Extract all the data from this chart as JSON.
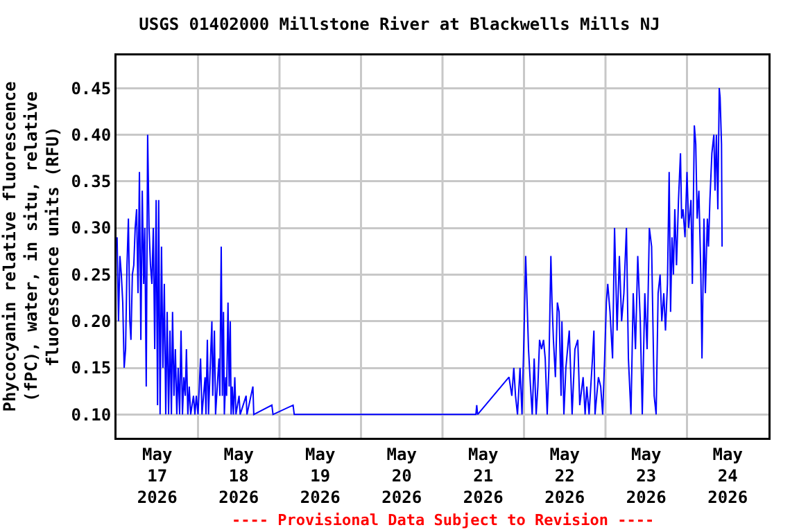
{
  "chart_data": {
    "type": "line",
    "title": "USGS 01402000 Millstone River at Blackwells Mills NJ",
    "ylabel": "Phycocyanin relative fluorescence\n(fPC), water, in situ, relative\nfluorescence units (RFU)",
    "annotations": [
      "---- Provisional Data Subject to Revision ----"
    ],
    "xlim": [
      "2026-05-17",
      "2026-05-25"
    ],
    "xticks": [
      {
        "value": "2026-05-17T12:00",
        "label": "May\n17\n2026"
      },
      {
        "value": "2026-05-18T12:00",
        "label": "May\n18\n2026"
      },
      {
        "value": "2026-05-19T12:00",
        "label": "May\n19\n2026"
      },
      {
        "value": "2026-05-20T12:00",
        "label": "May\n20\n2026"
      },
      {
        "value": "2026-05-21T12:00",
        "label": "May\n21\n2026"
      },
      {
        "value": "2026-05-22T12:00",
        "label": "May\n22\n2026"
      },
      {
        "value": "2026-05-23T12:00",
        "label": "May\n23\n2026"
      },
      {
        "value": "2026-05-24T12:00",
        "label": "May\n24\n2026"
      },
      {
        "value": "2026-05-18",
        "label": null
      },
      {
        "value": "2026-05-19",
        "label": null
      },
      {
        "value": "2026-05-20",
        "label": null
      },
      {
        "value": "2026-05-21",
        "label": null
      },
      {
        "value": "2026-05-22",
        "label": null
      },
      {
        "value": "2026-05-23",
        "label": null
      },
      {
        "value": "2026-05-24",
        "label": null
      }
    ],
    "ylim": [
      0.075,
      0.485
    ],
    "yticks": [
      {
        "value": 0.1,
        "label": "0.10"
      },
      {
        "value": 0.15,
        "label": "0.15"
      },
      {
        "value": 0.2,
        "label": "0.20"
      },
      {
        "value": 0.25,
        "label": "0.25"
      },
      {
        "value": 0.3,
        "label": "0.30"
      },
      {
        "value": 0.35,
        "label": "0.35"
      },
      {
        "value": 0.4,
        "label": "0.40"
      },
      {
        "value": 0.45,
        "label": "0.45"
      }
    ],
    "grid": true,
    "marker": "none",
    "line_style": "solid",
    "series": [
      {
        "color": "#0000ff",
        "x": [
          "2026-05-17T00:10",
          "2026-05-17T00:35",
          "2026-05-17T01:00",
          "2026-05-17T01:25",
          "2026-05-17T01:50",
          "2026-05-17T02:15",
          "2026-05-17T02:40",
          "2026-05-17T03:05",
          "2026-05-17T03:30",
          "2026-05-17T03:55",
          "2026-05-17T04:15",
          "2026-05-17T04:40",
          "2026-05-17T05:05",
          "2026-05-17T05:30",
          "2026-05-17T05:55",
          "2026-05-17T06:20",
          "2026-05-17T06:45",
          "2026-05-17T07:10",
          "2026-05-17T07:35",
          "2026-05-17T08:00",
          "2026-05-17T08:20",
          "2026-05-17T08:45",
          "2026-05-17T09:10",
          "2026-05-17T09:35",
          "2026-05-17T10:00",
          "2026-05-17T10:25",
          "2026-05-17T10:50",
          "2026-05-17T11:15",
          "2026-05-17T11:40",
          "2026-05-17T12:05",
          "2026-05-17T12:25",
          "2026-05-17T12:50",
          "2026-05-17T13:15",
          "2026-05-17T13:40",
          "2026-05-17T14:05",
          "2026-05-17T14:30",
          "2026-05-17T14:55",
          "2026-05-17T15:20",
          "2026-05-17T15:45",
          "2026-05-17T16:10",
          "2026-05-17T16:30",
          "2026-05-17T16:55",
          "2026-05-17T17:20",
          "2026-05-17T17:45",
          "2026-05-17T18:10",
          "2026-05-17T18:35",
          "2026-05-17T19:00",
          "2026-05-17T19:25",
          "2026-05-17T19:50",
          "2026-05-17T20:15",
          "2026-05-17T20:35",
          "2026-05-17T21:00",
          "2026-05-17T21:25",
          "2026-05-17T21:50",
          "2026-05-17T22:40",
          "2026-05-17T23:05",
          "2026-05-17T23:30",
          "2026-05-18T00:00",
          "2026-05-18T00:45",
          "2026-05-18T01:10",
          "2026-05-18T02:05",
          "2026-05-18T02:20",
          "2026-05-18T02:45",
          "2026-05-18T03:05",
          "2026-05-18T04:05",
          "2026-05-18T04:20",
          "2026-05-18T04:50",
          "2026-05-18T05:10",
          "2026-05-18T06:10",
          "2026-05-18T06:25",
          "2026-05-18T06:50",
          "2026-05-18T07:10",
          "2026-05-18T07:30",
          "2026-05-18T07:45",
          "2026-05-18T08:10",
          "2026-05-18T08:25",
          "2026-05-18T08:50",
          "2026-05-18T09:10",
          "2026-05-18T09:30",
          "2026-05-18T09:45",
          "2026-05-18T10:05",
          "2026-05-18T10:25",
          "2026-05-18T10:50",
          "2026-05-18T11:10",
          "2026-05-18T12:05",
          "2026-05-18T12:25",
          "2026-05-18T14:10",
          "2026-05-18T14:25",
          "2026-05-18T16:10",
          "2026-05-18T16:25",
          "2026-05-18T21:45",
          "2026-05-18T22:05",
          "2026-05-19T04:00",
          "2026-05-19T04:20",
          "2026-05-21T09:50",
          "2026-05-21T10:05",
          "2026-05-21T10:20",
          "2026-05-21T19:35",
          "2026-05-21T20:25",
          "2026-05-21T21:00",
          "2026-05-21T21:30",
          "2026-05-21T22:05",
          "2026-05-21T22:50",
          "2026-05-21T23:25",
          "2026-05-22T00:00",
          "2026-05-22T00:30",
          "2026-05-22T00:55",
          "2026-05-22T01:20",
          "2026-05-22T01:55",
          "2026-05-22T02:25",
          "2026-05-22T03:00",
          "2026-05-22T03:35",
          "2026-05-22T04:05",
          "2026-05-22T04:35",
          "2026-05-22T05:10",
          "2026-05-22T05:45",
          "2026-05-22T06:15",
          "2026-05-22T06:50",
          "2026-05-22T07:20",
          "2026-05-22T07:55",
          "2026-05-22T08:15",
          "2026-05-22T08:40",
          "2026-05-22T09:15",
          "2026-05-22T09:50",
          "2026-05-22T10:20",
          "2026-05-22T10:55",
          "2026-05-22T11:10",
          "2026-05-22T11:45",
          "2026-05-22T12:20",
          "2026-05-22T13:20",
          "2026-05-22T14:10",
          "2026-05-22T15:00",
          "2026-05-22T15:50",
          "2026-05-22T16:25",
          "2026-05-22T17:25",
          "2026-05-22T18:00",
          "2026-05-22T18:30",
          "2026-05-22T19:10",
          "2026-05-22T20:10",
          "2026-05-22T20:35",
          "2026-05-22T20:55",
          "2026-05-22T21:55",
          "2026-05-22T22:35",
          "2026-05-22T23:10",
          "2026-05-22T23:45",
          "2026-05-23T00:15",
          "2026-05-23T00:40",
          "2026-05-23T01:20",
          "2026-05-23T02:05",
          "2026-05-23T02:40",
          "2026-05-23T03:25",
          "2026-05-23T04:05",
          "2026-05-23T04:45",
          "2026-05-23T05:25",
          "2026-05-23T06:10",
          "2026-05-23T06:45",
          "2026-05-23T07:30",
          "2026-05-23T08:10",
          "2026-05-23T08:50",
          "2026-05-23T09:30",
          "2026-05-23T10:15",
          "2026-05-23T10:50",
          "2026-05-23T11:35",
          "2026-05-23T12:15",
          "2026-05-23T12:55",
          "2026-05-23T13:35",
          "2026-05-23T14:20",
          "2026-05-23T14:55",
          "2026-05-23T15:30",
          "2026-05-23T16:05",
          "2026-05-23T16:35",
          "2026-05-23T17:10",
          "2026-05-23T17:40",
          "2026-05-23T18:15",
          "2026-05-23T18:45",
          "2026-05-23T19:10",
          "2026-05-23T19:35",
          "2026-05-23T20:00",
          "2026-05-23T20:25",
          "2026-05-23T20:55",
          "2026-05-23T21:30",
          "2026-05-23T22:05",
          "2026-05-23T22:25",
          "2026-05-23T22:50",
          "2026-05-23T23:25",
          "2026-05-24T00:00",
          "2026-05-24T00:30",
          "2026-05-24T01:10",
          "2026-05-24T01:35",
          "2026-05-24T02:10",
          "2026-05-24T02:35",
          "2026-05-24T03:00",
          "2026-05-24T03:30",
          "2026-05-24T04:05",
          "2026-05-24T04:25",
          "2026-05-24T05:00",
          "2026-05-24T05:25",
          "2026-05-24T06:00",
          "2026-05-24T06:20",
          "2026-05-24T06:45",
          "2026-05-24T07:20",
          "2026-05-24T07:55",
          "2026-05-24T08:15",
          "2026-05-24T08:40",
          "2026-05-24T09:05",
          "2026-05-24T09:30",
          "2026-05-24T09:45",
          "2026-05-24T10:10",
          "2026-05-24T10:20"
        ],
        "values": [
          0.29,
          0.2,
          0.27,
          0.25,
          0.22,
          0.15,
          0.17,
          0.26,
          0.31,
          0.2,
          0.18,
          0.25,
          0.26,
          0.3,
          0.32,
          0.23,
          0.36,
          0.18,
          0.34,
          0.24,
          0.3,
          0.13,
          0.4,
          0.3,
          0.26,
          0.24,
          0.3,
          0.17,
          0.33,
          0.11,
          0.33,
          0.1,
          0.28,
          0.15,
          0.24,
          0.1,
          0.21,
          0.1,
          0.19,
          0.1,
          0.21,
          0.12,
          0.17,
          0.1,
          0.15,
          0.1,
          0.19,
          0.1,
          0.14,
          0.12,
          0.17,
          0.1,
          0.13,
          0.1,
          0.12,
          0.1,
          0.12,
          0.1,
          0.16,
          0.1,
          0.14,
          0.1,
          0.18,
          0.1,
          0.2,
          0.12,
          0.19,
          0.1,
          0.16,
          0.12,
          0.28,
          0.12,
          0.21,
          0.1,
          0.14,
          0.12,
          0.22,
          0.13,
          0.2,
          0.1,
          0.13,
          0.1,
          0.14,
          0.1,
          0.12,
          0.1,
          0.12,
          0.1,
          0.13,
          0.1,
          0.11,
          0.1,
          0.11,
          0.1,
          0.1,
          0.11,
          0.1,
          0.14,
          0.12,
          0.15,
          0.12,
          0.1,
          0.15,
          0.1,
          0.185,
          0.27,
          0.22,
          0.17,
          0.13,
          0.1,
          0.16,
          0.1,
          0.13,
          0.18,
          0.17,
          0.18,
          0.16,
          0.1,
          0.15,
          0.27,
          0.22,
          0.18,
          0.14,
          0.22,
          0.21,
          0.12,
          0.2,
          0.1,
          0.15,
          0.19,
          0.1,
          0.17,
          0.18,
          0.11,
          0.14,
          0.1,
          0.13,
          0.1,
          0.16,
          0.19,
          0.1,
          0.14,
          0.13,
          0.1,
          0.16,
          0.22,
          0.24,
          0.21,
          0.16,
          0.3,
          0.19,
          0.27,
          0.2,
          0.23,
          0.3,
          0.16,
          0.1,
          0.23,
          0.17,
          0.27,
          0.2,
          0.1,
          0.23,
          0.17,
          0.3,
          0.28,
          0.12,
          0.1,
          0.23,
          0.25,
          0.2,
          0.23,
          0.19,
          0.24,
          0.36,
          0.21,
          0.29,
          0.25,
          0.32,
          0.26,
          0.33,
          0.38,
          0.31,
          0.32,
          0.29,
          0.36,
          0.3,
          0.33,
          0.24,
          0.41,
          0.39,
          0.31,
          0.34,
          0.25,
          0.16,
          0.31,
          0.23,
          0.31,
          0.28,
          0.33,
          0.38,
          0.4,
          0.34,
          0.4,
          0.32,
          0.45,
          0.44,
          0.39,
          0.28
        ]
      }
    ]
  }
}
